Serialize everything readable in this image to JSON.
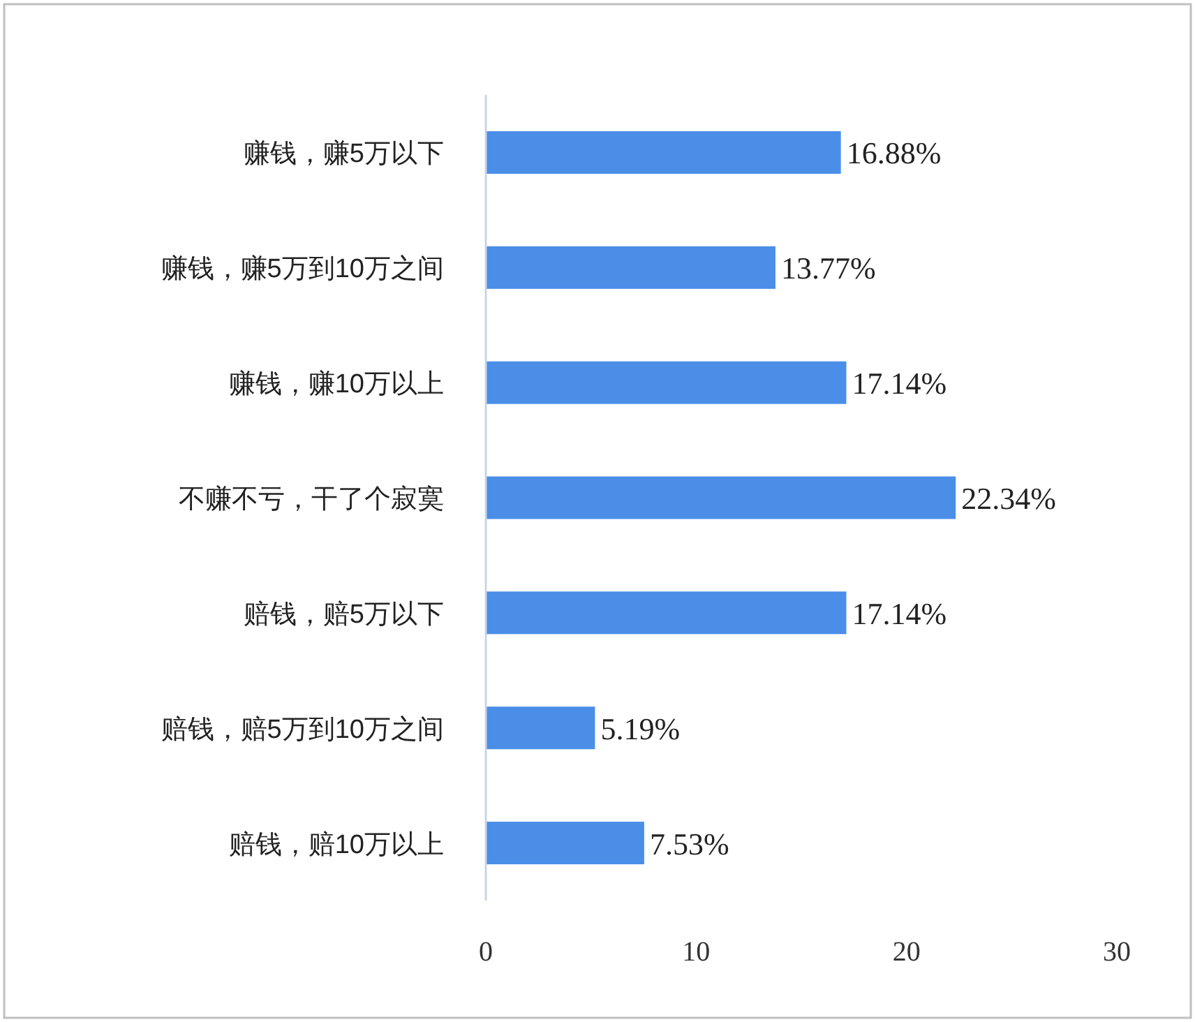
{
  "chart_data": {
    "type": "bar",
    "orientation": "horizontal",
    "categories": [
      "赚钱，赚5万以下",
      "赚钱，赚5万到10万之间",
      "赚钱，赚10万以上",
      "不赚不亏，干了个寂寞",
      "赔钱，赔5万以下",
      "赔钱，赔5万到10万之间",
      "赔钱，赔10万以上"
    ],
    "values": [
      16.88,
      13.77,
      17.14,
      22.34,
      17.14,
      5.19,
      7.53
    ],
    "value_labels": [
      "16.88%",
      "13.77%",
      "17.14%",
      "22.34%",
      "17.14%",
      "5.19%",
      "7.53%"
    ],
    "color": "#4a8ee8",
    "xlim": [
      0,
      30
    ],
    "xticks": [
      0,
      10,
      20,
      30
    ],
    "grid": false
  }
}
